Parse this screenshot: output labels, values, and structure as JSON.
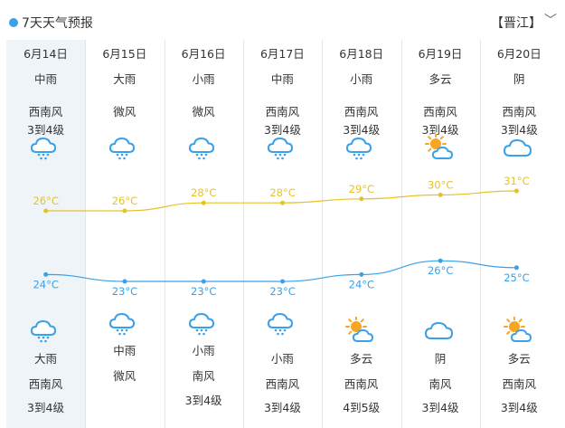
{
  "header": {
    "title": "7天天气预报",
    "city": "【晋江】",
    "chevron": "﹀"
  },
  "colors": {
    "high": "#e6c229",
    "low": "#3aa0e8",
    "icon_blue": "#3aa0e8",
    "sun": "#f5a623",
    "selected_bg": "#eef4f8"
  },
  "days": [
    {
      "date": "6月14日",
      "day_weather": "中雨",
      "day_wind": "西南风",
      "day_level": "3到4级",
      "day_icon": "rain-icon",
      "night_icon": "rain-icon",
      "night_weather": "大雨",
      "night_wind": "西南风",
      "night_level": "3到4级",
      "high": "26°C",
      "low": "24°C"
    },
    {
      "date": "6月15日",
      "day_weather": "大雨",
      "day_wind": "微风",
      "day_level": "",
      "day_icon": "rain-icon",
      "night_icon": "rain-icon",
      "night_weather": "中雨",
      "night_wind": "微风",
      "night_level": "",
      "high": "26°C",
      "low": "23°C"
    },
    {
      "date": "6月16日",
      "day_weather": "小雨",
      "day_wind": "微风",
      "day_level": "",
      "day_icon": "rain-icon",
      "night_icon": "rain-icon",
      "night_weather": "小雨",
      "night_wind": "南风",
      "night_level": "3到4级",
      "high": "28°C",
      "low": "23°C"
    },
    {
      "date": "6月17日",
      "day_weather": "中雨",
      "day_wind": "西南风",
      "day_level": "3到4级",
      "day_icon": "rain-icon",
      "night_icon": "rain-icon",
      "night_weather": "小雨",
      "night_wind": "西南风",
      "night_level": "3到4级",
      "high": "28°C",
      "low": "23°C"
    },
    {
      "date": "6月18日",
      "day_weather": "小雨",
      "day_wind": "西南风",
      "day_level": "3到4级",
      "day_icon": "rain-icon",
      "night_icon": "partly-cloudy-icon",
      "night_weather": "多云",
      "night_wind": "西南风",
      "night_level": "4到5级",
      "high": "29°C",
      "low": "24°C"
    },
    {
      "date": "6月19日",
      "day_weather": "多云",
      "day_wind": "西南风",
      "day_level": "3到4级",
      "day_icon": "partly-cloudy-icon",
      "night_icon": "cloud-icon",
      "night_weather": "阴",
      "night_wind": "南风",
      "night_level": "3到4级",
      "high": "30°C",
      "low": "26°C"
    },
    {
      "date": "6月20日",
      "day_weather": "阴",
      "day_wind": "西南风",
      "day_level": "3到4级",
      "day_icon": "cloud-icon",
      "night_icon": "partly-cloudy-icon",
      "night_weather": "多云",
      "night_wind": "西南风",
      "night_level": "3到4级",
      "high": "31°C",
      "low": "25°C"
    }
  ],
  "chart_data": {
    "type": "line",
    "categories": [
      "6月14日",
      "6月15日",
      "6月16日",
      "6月17日",
      "6月18日",
      "6月19日",
      "6月20日"
    ],
    "series": [
      {
        "values": [
          26,
          26,
          28,
          28,
          29,
          30,
          31
        ]
      },
      {
        "values": [
          24,
          23,
          23,
          23,
          24,
          26,
          25
        ]
      }
    ]
  }
}
